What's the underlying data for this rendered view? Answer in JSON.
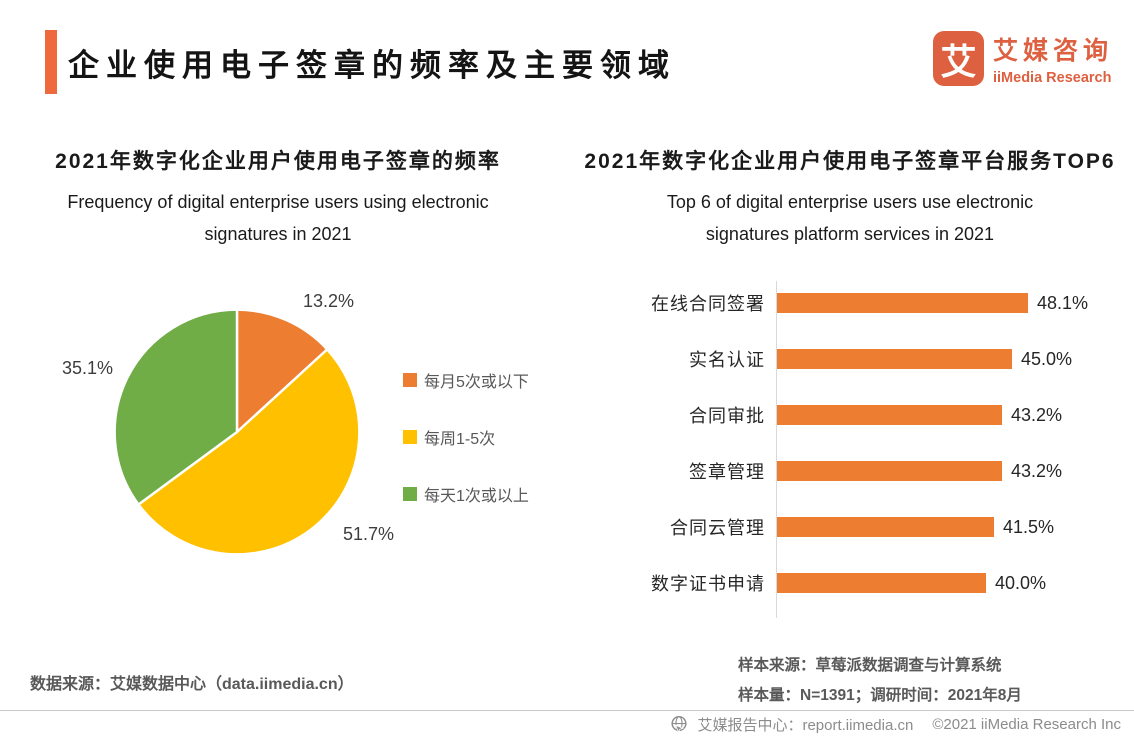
{
  "header": {
    "title": "企业使用电子签章的频率及主要领域",
    "logo": {
      "icon_glyph": "艾",
      "brand_cn": "艾媒咨询",
      "brand_en": "iiMedia Research"
    }
  },
  "chart_data": [
    {
      "type": "pie",
      "title": "2021年数字化企业用户使用电子签章的频率",
      "subtitle": "Frequency of digital enterprise users using electronic signatures in 2021",
      "subtitle_lines": [
        "Frequency of digital enterprise users using electronic",
        "signatures in 2021"
      ],
      "labels": [
        "每月5次或以下",
        "每周1-5次",
        "每天1次或以上"
      ],
      "values": [
        13.2,
        51.7,
        35.1
      ],
      "value_labels": [
        "13.2%",
        "51.7%",
        "35.1%"
      ],
      "colors": [
        "#ED7D31",
        "#FFC000",
        "#70AD47"
      ],
      "start_angle_deg": 0,
      "direction": "clockwise",
      "legend_position": "right"
    },
    {
      "type": "bar",
      "orientation": "horizontal",
      "title": "2021年数字化企业用户使用电子签章平台服务TOP6",
      "subtitle": "Top 6 of digital enterprise users use electronic signatures platform services in 2021",
      "subtitle_lines": [
        "Top 6 of digital enterprise users use electronic",
        "signatures platform services in 2021"
      ],
      "categories": [
        "在线合同签署",
        "实名认证",
        "合同审批",
        "签章管理",
        "合同云管理",
        "数字证书申请"
      ],
      "values": [
        48.1,
        45.0,
        43.2,
        43.2,
        41.5,
        40.0
      ],
      "value_labels": [
        "48.1%",
        "45.0%",
        "43.2%",
        "43.2%",
        "41.5%",
        "40.0%"
      ],
      "bar_color": "#ED7D31",
      "value_axis_visible": false,
      "category_axis_line": true
    }
  ],
  "footer": {
    "data_source": "数据来源：艾媒数据中心（data.iimedia.cn）",
    "sample_source": "样本来源：草莓派数据调查与计算系统",
    "sample_info": "样本量：N=1391；调研时间：2021年8月"
  },
  "bottom_bar": {
    "report_center": "艾媒报告中心：report.iimedia.cn",
    "copyright": "©2021  iiMedia Research Inc",
    "icon": "globe-with-cursor"
  },
  "colors": {
    "accent_orange": "#EE6A3E",
    "brand_orange": "#DD6140",
    "series_orange": "#ED7D31",
    "series_yellow": "#FFC000",
    "series_green": "#70AD47",
    "text_dark": "#262626",
    "text_gray": "#595959",
    "footer_gray": "#8C8C8C",
    "axis_gray": "#D9D9D9"
  }
}
